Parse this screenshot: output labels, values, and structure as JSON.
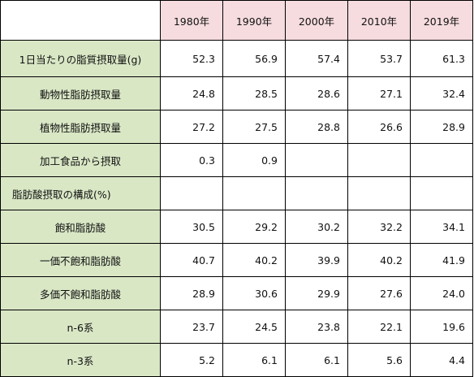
{
  "table": {
    "columns": [
      "1980年",
      "1990年",
      "2000年",
      "2010年",
      "2019年"
    ],
    "rows": [
      {
        "label": "1日当たりの脂質摂取量(g)",
        "values": [
          "52.3",
          "56.9",
          "57.4",
          "53.7",
          "61.3"
        ]
      },
      {
        "label": "動物性脂肪摂取量",
        "values": [
          "24.8",
          "28.5",
          "28.6",
          "27.1",
          "32.4"
        ]
      },
      {
        "label": "植物性脂肪摂取量",
        "values": [
          "27.2",
          "27.5",
          "28.8",
          "26.6",
          "28.9"
        ]
      },
      {
        "label": "加工食品から摂取",
        "values": [
          "0.3",
          "0.9",
          "",
          "",
          ""
        ]
      },
      {
        "label": "脂肪酸摂取の構成(%)",
        "values": [
          "",
          "",
          "",
          "",
          ""
        ]
      },
      {
        "label": "飽和脂肪酸",
        "values": [
          "30.5",
          "29.2",
          "30.2",
          "32.2",
          "34.1"
        ]
      },
      {
        "label": "一価不飽和脂肪酸",
        "values": [
          "40.7",
          "40.2",
          "39.9",
          "40.2",
          "41.9"
        ]
      },
      {
        "label": "多価不飽和脂肪酸",
        "values": [
          "28.9",
          "30.6",
          "29.9",
          "27.6",
          "24.0"
        ]
      },
      {
        "label": "n-6系",
        "values": [
          "23.7",
          "24.5",
          "23.8",
          "22.1",
          "19.6"
        ]
      },
      {
        "label": "n-3系",
        "values": [
          "5.2",
          "6.1",
          "6.1",
          "5.6",
          "4.4"
        ]
      }
    ]
  }
}
